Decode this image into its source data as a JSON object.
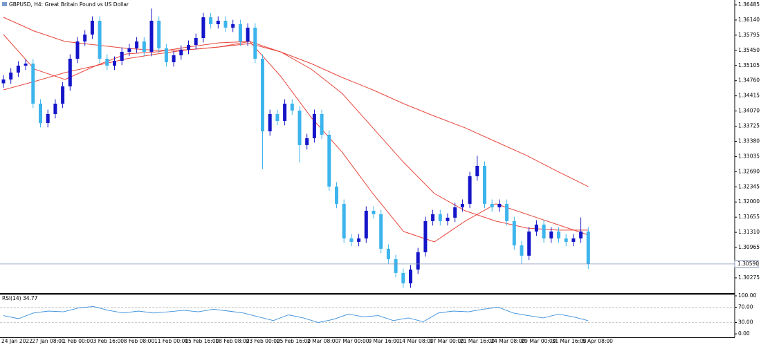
{
  "header": {
    "title": "GBPUSD, H4:  Great Britain Pound vs US Dollar"
  },
  "chart_data": [
    {
      "type": "candlestick",
      "ylim": [
        1.29928,
        1.36595
      ],
      "yticks": [
        1.36485,
        {
          "value": 1.3614,
          "label": "1.36140"
        },
        1.35795,
        {
          "value": 1.3545,
          "label": "1.35450"
        },
        1.35105,
        {
          "value": 1.3476,
          "label": "1.34760"
        },
        1.34415,
        {
          "value": 1.3407,
          "label": "1.34070"
        },
        1.33725,
        {
          "value": 1.3338,
          "label": "1.33380"
        },
        1.33035,
        {
          "value": 1.3269,
          "label": "1.32690"
        },
        1.32345,
        {
          "value": 1.32,
          "label": "1.32000"
        },
        1.31655,
        {
          "value": 1.3131,
          "label": "1.31310"
        },
        1.30965,
        1.30275
      ],
      "up_color": "#1414c8",
      "down_color": "#3cb4ec",
      "open": [
        1.347,
        1.34787,
        1.34944,
        1.35102,
        1.35149,
        1.34237,
        1.33797,
        1.34001,
        1.34237,
        1.3463,
        1.35259,
        1.35652,
        1.35809,
        1.36123,
        1.35259,
        1.35102,
        1.35212,
        1.35416,
        1.35495,
        1.35652,
        1.35416,
        1.36123,
        1.35495,
        1.3518,
        1.35337,
        1.35463,
        1.35573,
        1.3573,
        1.36202,
        1.36045,
        1.36123,
        1.35966,
        1.36045,
        1.35652,
        1.35966,
        1.35259,
        1.33608,
        1.34001,
        1.33844,
        1.34237,
        1.3408,
        1.33294,
        1.33451,
        1.34001,
        1.3353,
        1.32351,
        1.31958,
        1.31172,
        1.31093,
        1.31172,
        1.318,
        1.31722,
        1.30936,
        1.307,
        1.30386,
        1.3015,
        1.30464,
        1.30857,
        1.31565,
        1.31722,
        1.31565,
        1.31643,
        1.31879,
        1.31958,
        1.32586,
        1.32822,
        1.31958,
        1.31879,
        1.31958,
        1.31565,
        1.31014,
        1.30779,
        1.31329,
        1.31486,
        1.31172,
        1.31329,
        1.31172,
        1.31093,
        1.31172,
        1.31329
      ],
      "high": [
        1.34887,
        1.35044,
        1.35202,
        1.35249,
        1.35249,
        1.34337,
        1.34101,
        1.34337,
        1.3473,
        1.35359,
        1.35752,
        1.35909,
        1.36223,
        1.36223,
        1.35359,
        1.35312,
        1.35516,
        1.35595,
        1.35752,
        1.35752,
        1.364,
        1.36223,
        1.35595,
        1.35437,
        1.35563,
        1.35673,
        1.3583,
        1.36302,
        1.36302,
        1.36223,
        1.36223,
        1.36145,
        1.36145,
        1.36066,
        1.36066,
        1.35359,
        1.34101,
        1.34101,
        1.34337,
        1.34337,
        1.3418,
        1.33551,
        1.34101,
        1.34101,
        1.3363,
        1.32451,
        1.32058,
        1.31272,
        1.31272,
        1.319,
        1.319,
        1.31822,
        1.31036,
        1.308,
        1.30486,
        1.30564,
        1.30957,
        1.31665,
        1.31822,
        1.31822,
        1.31743,
        1.31979,
        1.32058,
        1.32686,
        1.3305,
        1.32922,
        1.32058,
        1.32058,
        1.32058,
        1.31665,
        1.31114,
        1.31429,
        1.31586,
        1.31586,
        1.31429,
        1.31429,
        1.31272,
        1.31272,
        1.3165,
        1.31429
      ],
      "low": [
        1.346,
        1.34687,
        1.34844,
        1.35002,
        1.34137,
        1.33697,
        1.33697,
        1.33901,
        1.34137,
        1.3453,
        1.35159,
        1.35552,
        1.35709,
        1.35159,
        1.35002,
        1.35002,
        1.35112,
        1.35316,
        1.35395,
        1.35316,
        1.35316,
        1.35395,
        1.3508,
        1.3508,
        1.35237,
        1.35363,
        1.35473,
        1.3563,
        1.35945,
        1.35945,
        1.35866,
        1.35866,
        1.35552,
        1.35552,
        1.35159,
        1.3275,
        1.33508,
        1.33744,
        1.33744,
        1.3398,
        1.329,
        1.33194,
        1.33351,
        1.3343,
        1.32251,
        1.31858,
        1.31072,
        1.30993,
        1.30993,
        1.31072,
        1.31622,
        1.30836,
        1.306,
        1.30286,
        1.3005,
        1.3005,
        1.30364,
        1.30757,
        1.31465,
        1.31465,
        1.31465,
        1.31543,
        1.31779,
        1.31858,
        1.32486,
        1.31858,
        1.31779,
        1.31779,
        1.31465,
        1.30914,
        1.306,
        1.30679,
        1.31229,
        1.31072,
        1.31072,
        1.31072,
        1.30993,
        1.30993,
        1.31072,
        1.3048
      ],
      "close": [
        1.34787,
        1.34944,
        1.35102,
        1.35149,
        1.34237,
        1.33797,
        1.34001,
        1.34237,
        1.3463,
        1.35259,
        1.35652,
        1.35809,
        1.36123,
        1.35259,
        1.35102,
        1.35212,
        1.35416,
        1.35495,
        1.35652,
        1.35416,
        1.36123,
        1.35495,
        1.3518,
        1.35337,
        1.35463,
        1.35573,
        1.3573,
        1.36202,
        1.36045,
        1.36123,
        1.35966,
        1.36045,
        1.35652,
        1.35966,
        1.35259,
        1.33608,
        1.34001,
        1.33844,
        1.34237,
        1.3408,
        1.33294,
        1.33451,
        1.34001,
        1.3353,
        1.32351,
        1.31958,
        1.31172,
        1.31093,
        1.31172,
        1.318,
        1.31722,
        1.30936,
        1.307,
        1.30386,
        1.3015,
        1.30464,
        1.30857,
        1.31565,
        1.31722,
        1.31565,
        1.31643,
        1.31879,
        1.31958,
        1.32586,
        1.32822,
        1.31958,
        1.31879,
        1.31958,
        1.31565,
        1.31014,
        1.30779,
        1.31329,
        1.31486,
        1.31172,
        1.31329,
        1.31172,
        1.31093,
        1.31172,
        1.31329,
        1.3059
      ],
      "current_price": {
        "value": 1.3059,
        "label": "1.30590"
      },
      "overlays": [
        {
          "color": "#e8463c",
          "values": [
            1.34551,
            1.3474,
            1.34944,
            1.35102,
            1.35259,
            1.35369,
            1.35463,
            1.35526,
            1.35605,
            1.35416,
            1.35149,
            1.34834,
            1.34551,
            1.34237,
            1.33954,
            1.33687,
            1.33372,
            1.33058,
            1.32697,
            1.32351
          ]
        },
        {
          "color": "#e8463c",
          "values": [
            1.36202,
            1.35888,
            1.35652,
            1.35573,
            1.35495,
            1.35448,
            1.35463,
            1.35526,
            1.35652,
            1.35416,
            1.35023,
            1.34473,
            1.33687,
            1.32901,
            1.32193,
            1.318,
            1.31565,
            1.31407,
            1.3136,
            1.3136
          ]
        },
        {
          "color": "#e8463c",
          "values": [
            1.35809,
            1.35023,
            1.34787,
            1.35102,
            1.35369,
            1.35416,
            1.35526,
            1.3562,
            1.35652,
            1.34866,
            1.33923,
            1.33137,
            1.32193,
            1.31329,
            1.31093,
            1.31565,
            1.31958,
            1.31722,
            1.31486,
            1.3125
          ]
        }
      ],
      "x_labels": [
        "24 Jan 2022",
        "27 Jan 08:00",
        "1 Feb 00:00",
        "3 Feb 16:00",
        "8 Feb 08:00",
        "11 Feb 00:00",
        "15 Feb 16:00",
        "18 Feb 08:00",
        "23 Feb 00:00",
        "25 Feb 16:00",
        "2 Mar 08:00",
        "7 Mar 00:00",
        "9 Mar 16:00",
        "14 Mar 08:00",
        "17 Mar 00:00",
        "21 Mar 16:00",
        "24 Mar 08:00",
        "29 Mar 00:00",
        "31 Mar 16:00",
        "5 Apr 08:00"
      ]
    },
    {
      "type": "line",
      "title": "RSI(14) 34.77",
      "color": "#3a8fdc",
      "ylim": [
        0,
        100
      ],
      "yticks": [
        {
          "value": 100,
          "label": "100.00"
        },
        {
          "value": 70,
          "label": "70.00"
        },
        {
          "value": 30,
          "label": "30.00"
        },
        {
          "value": 0,
          "label": "0.00"
        }
      ],
      "values": [
        48,
        40,
        55,
        60,
        58,
        68,
        72,
        62,
        55,
        60,
        55,
        58,
        62,
        58,
        65,
        60,
        55,
        45,
        35,
        50,
        42,
        30,
        38,
        52,
        45,
        48,
        35,
        42,
        32,
        55,
        60,
        58,
        65,
        70,
        55,
        48,
        42,
        52,
        45,
        34.77
      ]
    }
  ]
}
